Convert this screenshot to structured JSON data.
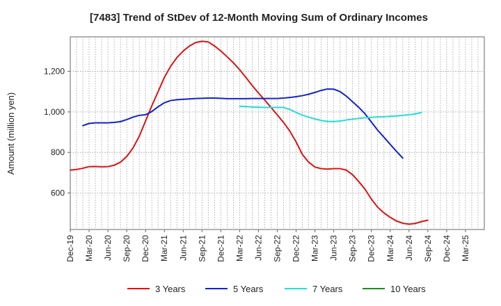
{
  "chart_data": {
    "type": "line",
    "title": "[7483]  Trend of StDev of 12-Month Moving Sum of Ordinary Incomes",
    "xlabel": "",
    "ylabel": "Amount (million yen)",
    "ylim": [
      420,
      1370
    ],
    "yticks": [
      600,
      800,
      1000,
      1200
    ],
    "ytick_labels": [
      "600",
      "800",
      "1,000",
      "1,200"
    ],
    "x_start": "Dec-19",
    "x_months_total": 66,
    "xticks": [
      "Dec-19",
      "Mar-20",
      "Jun-20",
      "Sep-20",
      "Dec-20",
      "Mar-21",
      "Jun-21",
      "Sep-21",
      "Dec-21",
      "Mar-22",
      "Jun-22",
      "Sep-22",
      "Dec-22",
      "Mar-23",
      "Jun-23",
      "Sep-23",
      "Dec-23",
      "Mar-24",
      "Jun-24",
      "Sep-24",
      "Dec-24",
      "Mar-25"
    ],
    "grid": true,
    "legend_position": "bottom",
    "series": [
      {
        "name": "3 Years",
        "color": "#dd1111",
        "start_index": 0,
        "values": [
          713,
          716,
          722,
          730,
          731,
          729,
          730,
          737,
          752,
          780,
          822,
          880,
          955,
          1030,
          1100,
          1170,
          1225,
          1268,
          1300,
          1325,
          1342,
          1348,
          1345,
          1325,
          1300,
          1272,
          1242,
          1208,
          1170,
          1130,
          1093,
          1058,
          1022,
          985,
          948,
          905,
          852,
          790,
          752,
          728,
          720,
          718,
          720,
          720,
          713,
          690,
          656,
          618,
          570,
          530,
          502,
          480,
          462,
          451,
          446,
          450,
          459,
          466
        ]
      },
      {
        "name": "5 Years",
        "color": "#1122cc",
        "start_index": 2,
        "values": [
          932,
          943,
          946,
          946,
          946,
          948,
          952,
          962,
          974,
          983,
          986,
          1002,
          1025,
          1045,
          1056,
          1060,
          1062,
          1064,
          1066,
          1067,
          1068,
          1068,
          1067,
          1065,
          1065,
          1065,
          1065,
          1066,
          1066,
          1066,
          1066,
          1066,
          1068,
          1071,
          1075,
          1080,
          1087,
          1096,
          1106,
          1113,
          1112,
          1100,
          1078,
          1050,
          1022,
          990,
          950,
          910,
          875,
          840,
          805,
          772
        ]
      },
      {
        "name": "7 Years",
        "color": "#22dddd",
        "start_index": 27,
        "values": [
          1028,
          1026,
          1024,
          1023,
          1022,
          1022,
          1022,
          1022,
          1012,
          997,
          984,
          974,
          965,
          958,
          953,
          952,
          955,
          960,
          964,
          968,
          971,
          973,
          975,
          976,
          978,
          980,
          983,
          986,
          990,
          997
        ]
      },
      {
        "name": "10 Years",
        "color": "#228822",
        "start_index": 0,
        "values": []
      }
    ]
  }
}
